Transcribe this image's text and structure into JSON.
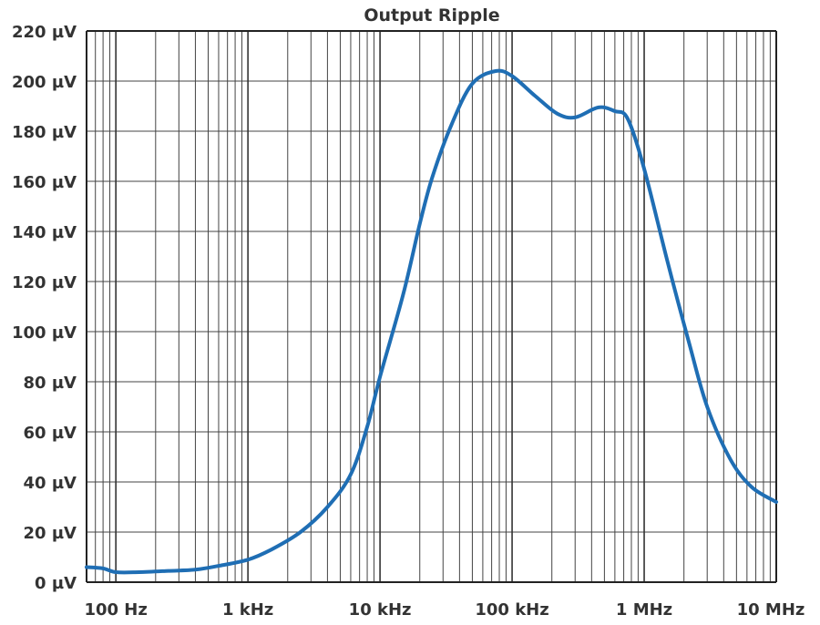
{
  "chart_data": {
    "type": "line",
    "title": "Output Ripple",
    "xlabel": "",
    "ylabel": "",
    "x_scale": "log",
    "xlim": [
      60,
      10000000
    ],
    "ylim": [
      0,
      220
    ],
    "grid": true,
    "x_ticks": [
      {
        "value": 100,
        "label": "100 Hz"
      },
      {
        "value": 1000,
        "label": "1 kHz"
      },
      {
        "value": 10000,
        "label": "10 kHz"
      },
      {
        "value": 100000,
        "label": "100 kHz"
      },
      {
        "value": 1000000,
        "label": "1 MHz"
      },
      {
        "value": 10000000,
        "label": "10 MHz"
      }
    ],
    "y_ticks": [
      {
        "value": 0,
        "label": "0 µV"
      },
      {
        "value": 20,
        "label": "20 µV"
      },
      {
        "value": 40,
        "label": "40 µV"
      },
      {
        "value": 60,
        "label": "60 µV"
      },
      {
        "value": 80,
        "label": "80 µV"
      },
      {
        "value": 100,
        "label": "100 µV"
      },
      {
        "value": 120,
        "label": "120 µV"
      },
      {
        "value": 140,
        "label": "140 µV"
      },
      {
        "value": 160,
        "label": "160 µV"
      },
      {
        "value": 180,
        "label": "180 µV"
      },
      {
        "value": 200,
        "label": "200 µV"
      },
      {
        "value": 220,
        "label": "220 µV"
      }
    ],
    "series": [
      {
        "color": "#1f6eb4",
        "points": [
          [
            60,
            6
          ],
          [
            80,
            5.5
          ],
          [
            100,
            4
          ],
          [
            150,
            4
          ],
          [
            250,
            4.5
          ],
          [
            400,
            5
          ],
          [
            600,
            6.5
          ],
          [
            1000,
            9
          ],
          [
            1500,
            13
          ],
          [
            2500,
            20
          ],
          [
            4000,
            30
          ],
          [
            6000,
            43
          ],
          [
            8000,
            62
          ],
          [
            10000,
            82
          ],
          [
            15000,
            115
          ],
          [
            20000,
            143
          ],
          [
            25000,
            162
          ],
          [
            35000,
            183
          ],
          [
            50000,
            199
          ],
          [
            75000,
            204
          ],
          [
            100000,
            202
          ],
          [
            150000,
            194
          ],
          [
            220000,
            187
          ],
          [
            300000,
            185.5
          ],
          [
            450000,
            189.5
          ],
          [
            600000,
            188
          ],
          [
            750000,
            185
          ],
          [
            1000000,
            165
          ],
          [
            1500000,
            128
          ],
          [
            2200000,
            95
          ],
          [
            3000000,
            70
          ],
          [
            4500000,
            49
          ],
          [
            6500000,
            38
          ],
          [
            10000000,
            32
          ]
        ]
      }
    ]
  }
}
